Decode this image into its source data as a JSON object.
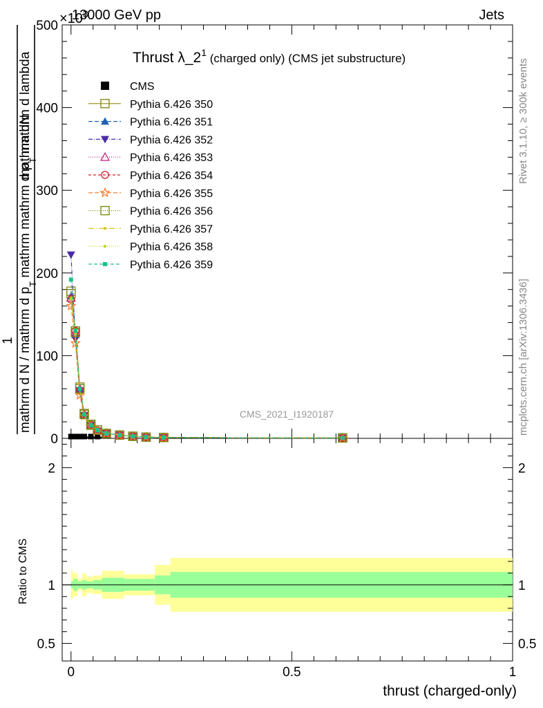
{
  "header": {
    "energy_label": "13000 GeV pp",
    "process_label": "Jets",
    "exponent_label": "×10",
    "exponent_power": "3"
  },
  "side_labels": {
    "rivet": "Rivet 3.1.10, ≥ 300k events",
    "mcplots": "mcplots.cern.ch [arXiv:1306.3436]"
  },
  "watermark": "CMS_2021_I1920187",
  "chart_data": [
    {
      "type": "line",
      "title": "Thrust λ_2",
      "title_sup": "1",
      "subtitle": "(charged only) (CMS jet substructure)",
      "xlabel": "thrust (charged-only)",
      "ylabel_numerator": "mathrm dN",
      "ylabel_denominator_1": "mathrm d N / mathrm d p",
      "ylabel_denominator_2": "mathrm d p",
      "ylabel_denominator_3": "mathrm d lambda",
      "ylabel_prefix": "1",
      "ylabel_mid": "mathrm d",
      "ylabel_sub": "T",
      "ylabel_mid2": "mathrm",
      "y_scale_note": "values in units of 10^3",
      "xlim": [
        -0.02,
        1.0
      ],
      "ylim": [
        0,
        500
      ],
      "x_ticks": [
        0,
        0.5,
        1
      ],
      "x_tick_labels": [
        "0",
        "0.5",
        "1"
      ],
      "y_ticks": [
        0,
        100,
        200,
        300,
        400,
        500
      ],
      "y_tick_labels": [
        "0",
        "100",
        "200",
        "300",
        "400",
        "500"
      ],
      "legend": [
        {
          "name": "CMS",
          "color": "#000000",
          "marker": "square-filled",
          "dash": "none"
        },
        {
          "name": "Pythia 6.426 350",
          "color": "#8a8a1a",
          "marker": "square-open",
          "dash": "solid"
        },
        {
          "name": "Pythia 6.426 351",
          "color": "#1f5fb4",
          "marker": "triangle-up-filled",
          "dash": "6,3"
        },
        {
          "name": "Pythia 6.426 352",
          "color": "#4b2ca6",
          "marker": "triangle-down-filled",
          "dash": "6,2,1,2"
        },
        {
          "name": "Pythia 6.426 353",
          "color": "#c0187a",
          "marker": "triangle-up-open",
          "dash": "1,2"
        },
        {
          "name": "Pythia 6.426 354",
          "color": "#d21c2a",
          "marker": "circle-open",
          "dash": "4,3"
        },
        {
          "name": "Pythia 6.426 355",
          "color": "#f07820",
          "marker": "star-open",
          "dash": "6,3"
        },
        {
          "name": "Pythia 6.426 356",
          "color": "#7a8a10",
          "marker": "square-open",
          "dash": "1,2"
        },
        {
          "name": "Pythia 6.426 357",
          "color": "#d6c41a",
          "marker": "dot",
          "dash": "8,3,1,3"
        },
        {
          "name": "Pythia 6.426 358",
          "color": "#b5d61a",
          "marker": "dot",
          "dash": "1,2"
        },
        {
          "name": "Pythia 6.426 359",
          "color": "#1cc48a",
          "marker": "square-small",
          "dash": "5,3"
        }
      ],
      "x": [
        0.0,
        0.01,
        0.02,
        0.03,
        0.045,
        0.06,
        0.08,
        0.11,
        0.14,
        0.17,
        0.21,
        0.615
      ],
      "series": [
        {
          "name": "CMS",
          "values": [
            0.5,
            0.5,
            0.5,
            0.5,
            0.5,
            0.5,
            0.3,
            0.2,
            0.1,
            0.1,
            0.1,
            0.0
          ]
        },
        {
          "name": "Pythia 6.426 350",
          "values": [
            178,
            130,
            62,
            30,
            17,
            10,
            6,
            4,
            2.5,
            1.5,
            1.0,
            0.5
          ]
        },
        {
          "name": "Pythia 6.426 351",
          "values": [
            172,
            125,
            60,
            29,
            16,
            10,
            6,
            4,
            2.5,
            1.5,
            1.0,
            0.5
          ]
        },
        {
          "name": "Pythia 6.426 352",
          "values": [
            222,
            120,
            58,
            28,
            16,
            9,
            6,
            4,
            2.4,
            1.4,
            1.0,
            0.5
          ]
        },
        {
          "name": "Pythia 6.426 353",
          "values": [
            170,
            128,
            60,
            29,
            16,
            10,
            6,
            4,
            2.5,
            1.5,
            1.0,
            0.5
          ]
        },
        {
          "name": "Pythia 6.426 354",
          "values": [
            168,
            130,
            58,
            28,
            16,
            9,
            6,
            4,
            2.5,
            1.5,
            1.0,
            0.5
          ]
        },
        {
          "name": "Pythia 6.426 355",
          "values": [
            160,
            115,
            52,
            27,
            15,
            9,
            6,
            4,
            2.4,
            1.4,
            1.0,
            0.5
          ]
        },
        {
          "name": "Pythia 6.426 356",
          "values": [
            175,
            128,
            60,
            29,
            16,
            10,
            6,
            4,
            2.5,
            1.5,
            1.0,
            0.5
          ]
        },
        {
          "name": "Pythia 6.426 357",
          "values": [
            170,
            126,
            59,
            28,
            16,
            10,
            6,
            4,
            2.5,
            1.5,
            1.0,
            0.5
          ]
        },
        {
          "name": "Pythia 6.426 358",
          "values": [
            168,
            125,
            59,
            28,
            16,
            10,
            6,
            4,
            2.5,
            1.5,
            1.0,
            0.5
          ]
        },
        {
          "name": "Pythia 6.426 359",
          "values": [
            192,
            130,
            60,
            29,
            16,
            10,
            6,
            4,
            2.5,
            1.5,
            1.0,
            0.5
          ]
        }
      ]
    },
    {
      "type": "area",
      "ylabel": "Ratio to CMS",
      "xlim": [
        -0.02,
        1.0
      ],
      "ylim": [
        0.35,
        2.25
      ],
      "y_ticks": [
        0.5,
        1,
        2
      ],
      "y_tick_labels": [
        "0.5",
        "1",
        "2"
      ],
      "reference_line": 1.0,
      "band_colors": {
        "outer": "#ffff99",
        "inner": "#99ff99"
      },
      "bins": [
        {
          "x0": 0.0,
          "x1": 0.005,
          "inner": [
            0.97,
            1.03
          ],
          "outer": [
            0.88,
            1.12
          ]
        },
        {
          "x0": 0.005,
          "x1": 0.015,
          "inner": [
            0.95,
            1.05
          ],
          "outer": [
            0.9,
            1.1
          ]
        },
        {
          "x0": 0.015,
          "x1": 0.025,
          "inner": [
            0.97,
            1.03
          ],
          "outer": [
            0.95,
            1.05
          ]
        },
        {
          "x0": 0.025,
          "x1": 0.035,
          "inner": [
            0.96,
            1.04
          ],
          "outer": [
            0.9,
            1.1
          ]
        },
        {
          "x0": 0.035,
          "x1": 0.05,
          "inner": [
            0.97,
            1.03
          ],
          "outer": [
            0.93,
            1.07
          ]
        },
        {
          "x0": 0.05,
          "x1": 0.07,
          "inner": [
            0.96,
            1.04
          ],
          "outer": [
            0.92,
            1.08
          ]
        },
        {
          "x0": 0.07,
          "x1": 0.12,
          "inner": [
            0.94,
            1.06
          ],
          "outer": [
            0.88,
            1.12
          ]
        },
        {
          "x0": 0.12,
          "x1": 0.19,
          "inner": [
            0.95,
            1.05
          ],
          "outer": [
            0.91,
            1.09
          ]
        },
        {
          "x0": 0.19,
          "x1": 0.225,
          "inner": [
            0.92,
            1.08
          ],
          "outer": [
            0.83,
            1.17
          ]
        },
        {
          "x0": 0.225,
          "x1": 1.0,
          "inner": [
            0.89,
            1.11
          ],
          "outer": [
            0.77,
            1.23
          ]
        }
      ]
    }
  ]
}
